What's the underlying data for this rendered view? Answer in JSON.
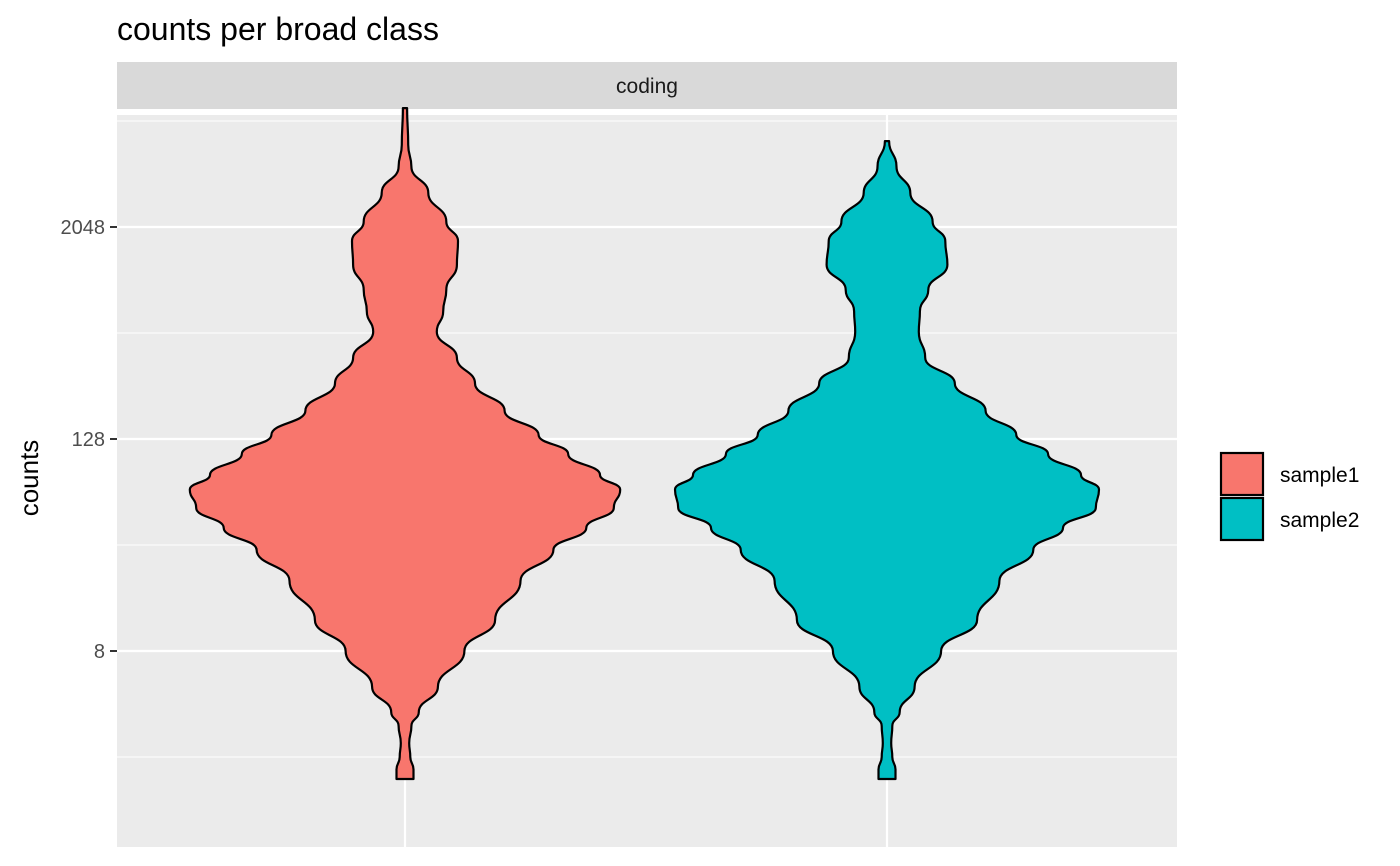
{
  "chart_data": {
    "type": "violin",
    "title": "counts per broad class",
    "facet": "coding",
    "xlabel": "",
    "ylabel": "counts",
    "y_scale": "log2",
    "ylim": [
      1.1,
      17000
    ],
    "y_ticks": [
      8,
      128,
      2048
    ],
    "y_tick_labels": [
      "8",
      "128",
      "2048"
    ],
    "grid": true,
    "legend_position": "right",
    "series": [
      {
        "name": "sample1",
        "color": "#F8766D",
        "min": 1.5,
        "max": 9700,
        "density_profile": [
          {
            "y": 1.5,
            "w": 0.08
          },
          {
            "y": 1.7,
            "w": 0.08
          },
          {
            "y": 2.0,
            "w": 0.05
          },
          {
            "y": 2.4,
            "w": 0.04
          },
          {
            "y": 3.0,
            "w": 0.06
          },
          {
            "y": 3.6,
            "w": 0.13
          },
          {
            "y": 5.0,
            "w": 0.31
          },
          {
            "y": 8.0,
            "w": 0.56
          },
          {
            "y": 12,
            "w": 0.85
          },
          {
            "y": 20,
            "w": 1.09
          },
          {
            "y": 30,
            "w": 1.4
          },
          {
            "y": 40,
            "w": 1.71
          },
          {
            "y": 52,
            "w": 1.97
          },
          {
            "y": 66,
            "w": 2.03
          },
          {
            "y": 80,
            "w": 1.84
          },
          {
            "y": 105,
            "w": 1.54
          },
          {
            "y": 135,
            "w": 1.26
          },
          {
            "y": 185,
            "w": 0.94
          },
          {
            "y": 265,
            "w": 0.66
          },
          {
            "y": 370,
            "w": 0.49
          },
          {
            "y": 520,
            "w": 0.3
          },
          {
            "y": 680,
            "w": 0.36
          },
          {
            "y": 900,
            "w": 0.39
          },
          {
            "y": 1250,
            "w": 0.49
          },
          {
            "y": 1700,
            "w": 0.5
          },
          {
            "y": 2200,
            "w": 0.39
          },
          {
            "y": 3200,
            "w": 0.22
          },
          {
            "y": 4500,
            "w": 0.06
          },
          {
            "y": 6000,
            "w": 0.03
          },
          {
            "y": 9700,
            "w": 0.02
          }
        ]
      },
      {
        "name": "sample2",
        "color": "#00BFC4",
        "min": 1.5,
        "max": 6300,
        "density_profile": [
          {
            "y": 1.5,
            "w": 0.08
          },
          {
            "y": 1.7,
            "w": 0.08
          },
          {
            "y": 2.0,
            "w": 0.05
          },
          {
            "y": 2.4,
            "w": 0.04
          },
          {
            "y": 3.0,
            "w": 0.05
          },
          {
            "y": 3.6,
            "w": 0.12
          },
          {
            "y": 5.0,
            "w": 0.26
          },
          {
            "y": 8.0,
            "w": 0.51
          },
          {
            "y": 12,
            "w": 0.85
          },
          {
            "y": 20,
            "w": 1.06
          },
          {
            "y": 30,
            "w": 1.38
          },
          {
            "y": 40,
            "w": 1.66
          },
          {
            "y": 52,
            "w": 1.97
          },
          {
            "y": 66,
            "w": 2.0
          },
          {
            "y": 80,
            "w": 1.83
          },
          {
            "y": 105,
            "w": 1.52
          },
          {
            "y": 135,
            "w": 1.22
          },
          {
            "y": 185,
            "w": 0.93
          },
          {
            "y": 265,
            "w": 0.64
          },
          {
            "y": 370,
            "w": 0.36
          },
          {
            "y": 520,
            "w": 0.3
          },
          {
            "y": 680,
            "w": 0.31
          },
          {
            "y": 900,
            "w": 0.39
          },
          {
            "y": 1250,
            "w": 0.57
          },
          {
            "y": 1700,
            "w": 0.55
          },
          {
            "y": 2200,
            "w": 0.43
          },
          {
            "y": 3200,
            "w": 0.22
          },
          {
            "y": 4500,
            "w": 0.09
          },
          {
            "y": 6300,
            "w": 0.02
          }
        ]
      }
    ]
  }
}
